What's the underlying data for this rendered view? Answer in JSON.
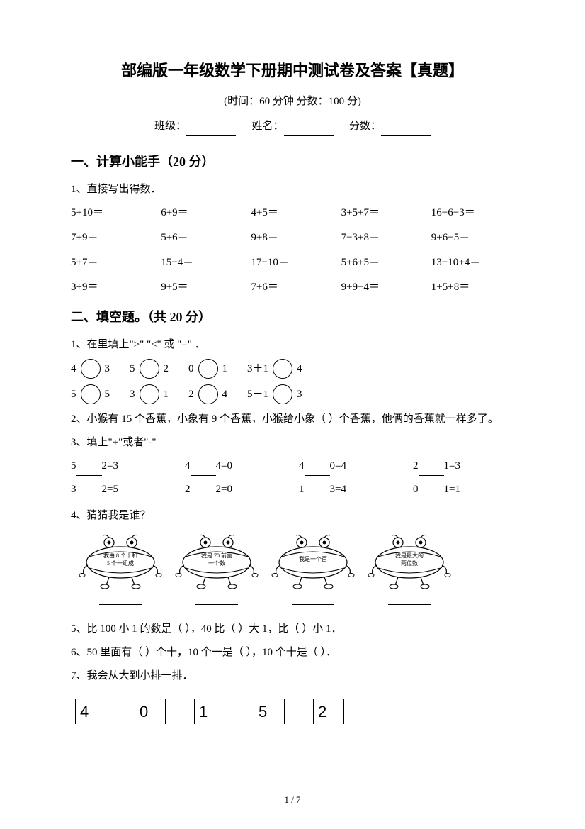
{
  "title": "部编版一年级数学下册期中测试卷及答案【真题】",
  "subtitle": "(时间：60 分钟    分数：100 分)",
  "info": {
    "class_label": "班级：",
    "name_label": "姓名：",
    "score_label": "分数："
  },
  "section1": {
    "heading": "一、计算小能手（20 分）",
    "q1_label": "1、直接写出得数．",
    "grid": [
      [
        "5+10＝",
        "6+9＝",
        "4+5＝",
        "3+5+7＝",
        "16−6−3＝"
      ],
      [
        "7+9＝",
        "5+6＝",
        "9+8＝",
        "7−3+8＝",
        "9+6−5＝"
      ],
      [
        "5+7＝",
        "15−4＝",
        "17−10＝",
        "5+6+5＝",
        "13−10+4＝"
      ],
      [
        "3+9＝",
        "9+5＝",
        "7+6＝",
        "9+9−4＝",
        "1+5+8＝"
      ]
    ]
  },
  "section2": {
    "heading": "二、填空题。（共 20 分）",
    "q1_label": "1、在里填上\">\" \"<\" 或 \"=\" ．",
    "compare_row1": [
      [
        "4",
        "3"
      ],
      [
        "5",
        "2"
      ],
      [
        "0",
        "1"
      ],
      [
        "3＋1",
        "4"
      ]
    ],
    "compare_row2": [
      [
        "5",
        "5"
      ],
      [
        "3",
        "1"
      ],
      [
        "2",
        "4"
      ],
      [
        "5－1",
        "3"
      ]
    ],
    "q2_text": "2、小猴有 15 个香蕉，小象有 9 个香蕉，小猴给小象（        ）个香蕉，他俩的香蕉就一样多了。",
    "q3_label": "3、填上\"+\"或者\"-\"",
    "fill_rows": [
      [
        "5",
        "2=3",
        "4",
        "4=0",
        "4",
        "0=4",
        "2",
        "1=3"
      ],
      [
        "3",
        "2=5",
        "2",
        "2=0",
        "1",
        "3=4",
        "0",
        "1=1"
      ]
    ],
    "q4_label": "4、猜猜我是谁？",
    "guess_texts": [
      "我由 8 个十和\n5 个一组成",
      "我是 70 前面\n一个数",
      "我是一个百",
      "我是最大的\n两位数"
    ],
    "q5_text": "5、比 100 小 1 的数是（        ），40 比（        ）大 1，比（        ）小 1．",
    "q6_text": "6、50 里面有（        ）个十，10 个一是（        ），10 个十是（        ）．",
    "q7_label": "7、我会从大到小排一排．",
    "number_boxes": [
      "4",
      "0",
      "1",
      "5",
      "2"
    ]
  },
  "page_number": "1 / 7",
  "colors": {
    "text": "#000000",
    "bg": "#ffffff"
  }
}
